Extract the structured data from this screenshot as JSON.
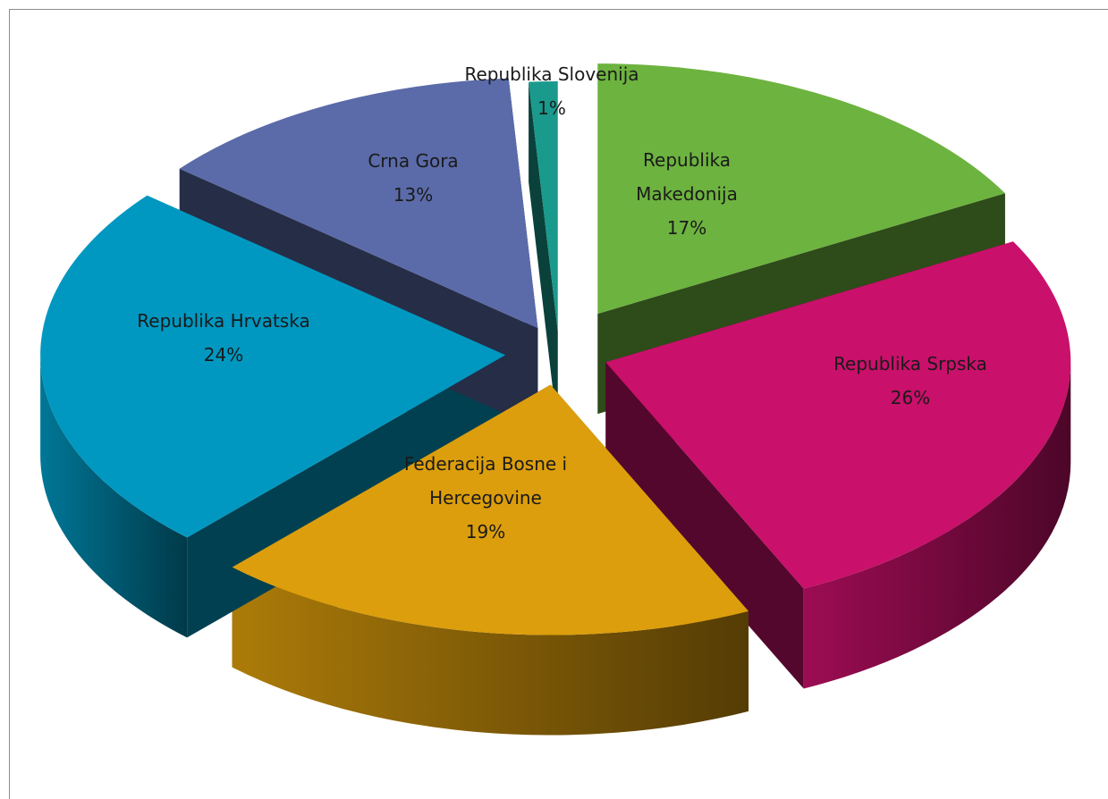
{
  "chart_data": {
    "type": "pie",
    "style": "3d-exploded",
    "title": "",
    "slices": [
      {
        "label": "Republika Makedonija",
        "label_lines": [
          "Republika",
          "Makedonija"
        ],
        "pct_label": "17%",
        "value": 17,
        "color": "#6db33f"
      },
      {
        "label": "Republika Srpska",
        "label_lines": [
          "Republika Srpska"
        ],
        "pct_label": "26%",
        "value": 26,
        "color": "#c9106a"
      },
      {
        "label": "Federacija Bosne i Hercegovine",
        "label_lines": [
          "Federacija Bosne i",
          "Hercegovine"
        ],
        "pct_label": "19%",
        "value": 19,
        "color": "#dc9e0c"
      },
      {
        "label": "Republika Hrvatska",
        "label_lines": [
          "Republika Hrvatska"
        ],
        "pct_label": "24%",
        "value": 24,
        "color": "#0098c1"
      },
      {
        "label": "Crna Gora",
        "label_lines": [
          "Crna Gora"
        ],
        "pct_label": "13%",
        "value": 13,
        "color": "#5b6ba9"
      },
      {
        "label": "Republika Slovenija",
        "label_lines": [
          "Republika Slovenija"
        ],
        "pct_label": "1%",
        "value": 1,
        "color": "#1a9a8c"
      }
    ]
  }
}
